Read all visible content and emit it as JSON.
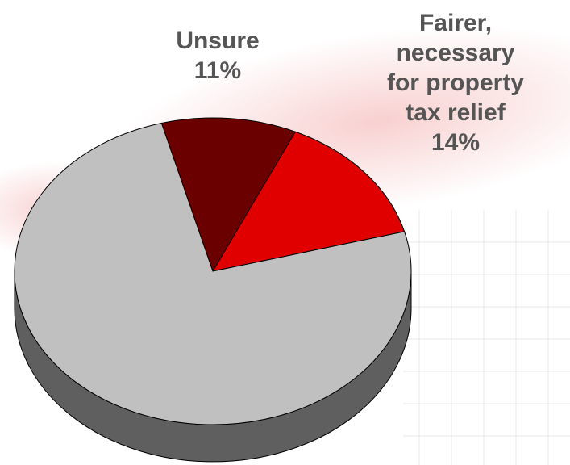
{
  "chart_data": {
    "type": "pie",
    "style": "3d",
    "title": "",
    "slices": [
      {
        "label": "Unsure",
        "value": 11,
        "value_label": "11%",
        "color": "#6b0000"
      },
      {
        "label": "Fairer, necessary for property tax relief",
        "label_lines": [
          "Fairer,",
          "necessary",
          "for property",
          "tax relief"
        ],
        "value": 14,
        "value_label": "14%",
        "color": "#e00000"
      },
      {
        "label": "",
        "value": 75,
        "value_label": "",
        "color": "#c0c0c0"
      }
    ],
    "side_color": "#5f5f5f",
    "legend": "none"
  },
  "colors": {
    "background": "#ffffff",
    "label_text": "#555555",
    "decor_red": "#e02a2a",
    "grid_line": "#e8e8e8"
  }
}
